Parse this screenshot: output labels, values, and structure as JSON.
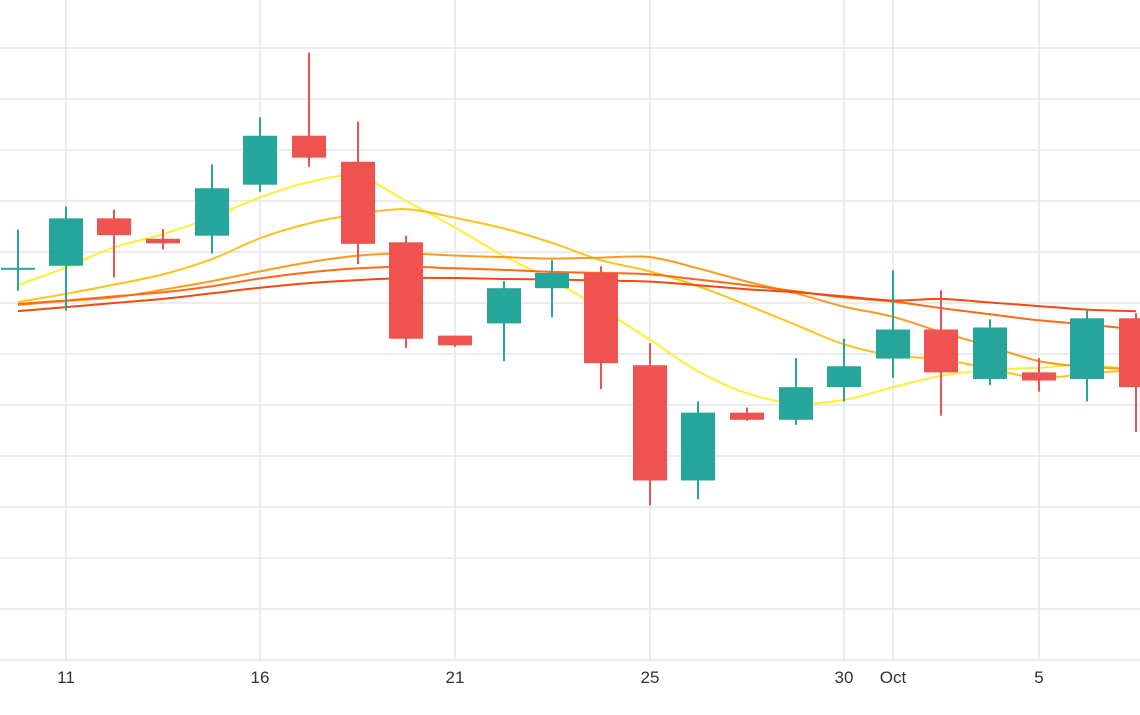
{
  "chart_data": {
    "type": "candlestick",
    "x_tick_labels": [
      "11",
      "16",
      "21",
      "25",
      "30",
      "Oct",
      "5"
    ],
    "grid": true,
    "colors": {
      "up": "#26a69a",
      "down": "#ef5350",
      "grid": "#e6e6e6",
      "ma_lines": [
        "#ffee33",
        "#ffc21a",
        "#ff9a1f",
        "#ff6a1a",
        "#f04a10"
      ]
    },
    "candles": [
      {
        "date": "Sep 10",
        "open": 76.6,
        "high": 84.4,
        "low": 72.4,
        "close": 76.9
      },
      {
        "date": "Sep 11",
        "open": 77.3,
        "high": 88.9,
        "low": 68.5,
        "close": 86.6
      },
      {
        "date": "Sep 12",
        "open": 86.6,
        "high": 88.3,
        "low": 75.0,
        "close": 83.3
      },
      {
        "date": "Sep 13",
        "open": 82.6,
        "high": 84.5,
        "low": 80.5,
        "close": 81.7
      },
      {
        "date": "Sep 15",
        "open": 83.2,
        "high": 97.2,
        "low": 79.7,
        "close": 92.5
      },
      {
        "date": "Sep 16",
        "open": 93.2,
        "high": 106.4,
        "low": 91.8,
        "close": 102.8
      },
      {
        "date": "Sep 17",
        "open": 102.8,
        "high": 119.1,
        "low": 96.7,
        "close": 98.5
      },
      {
        "date": "Sep 18",
        "open": 97.7,
        "high": 105.6,
        "low": 77.6,
        "close": 81.6
      },
      {
        "date": "Sep 20",
        "open": 81.9,
        "high": 83.2,
        "low": 61.2,
        "close": 63.0
      },
      {
        "date": "Sep 21",
        "open": 63.6,
        "high": 63.6,
        "low": 61.4,
        "close": 61.7
      },
      {
        "date": "Sep 22",
        "open": 66.0,
        "high": 74.3,
        "low": 58.6,
        "close": 72.9
      },
      {
        "date": "Sep 23",
        "open": 72.9,
        "high": 78.4,
        "low": 67.2,
        "close": 75.9
      },
      {
        "date": "Sep 24",
        "open": 75.9,
        "high": 77.2,
        "low": 53.1,
        "close": 58.2
      },
      {
        "date": "Sep 25",
        "open": 57.8,
        "high": 62.1,
        "low": 30.3,
        "close": 35.2
      },
      {
        "date": "Sep 26",
        "open": 35.2,
        "high": 50.7,
        "low": 31.5,
        "close": 48.5
      },
      {
        "date": "Sep 27",
        "open": 48.5,
        "high": 49.5,
        "low": 46.9,
        "close": 47.1
      },
      {
        "date": "Sep 29",
        "open": 47.1,
        "high": 59.2,
        "low": 46.1,
        "close": 53.5
      },
      {
        "date": "Sep 30",
        "open": 53.5,
        "high": 63.0,
        "low": 50.7,
        "close": 57.6
      },
      {
        "date": "Oct 1",
        "open": 59.1,
        "high": 76.4,
        "low": 55.3,
        "close": 64.8
      },
      {
        "date": "Oct 2",
        "open": 64.8,
        "high": 72.5,
        "low": 47.9,
        "close": 56.4
      },
      {
        "date": "Oct 4",
        "open": 55.1,
        "high": 66.8,
        "low": 53.9,
        "close": 65.2
      },
      {
        "date": "Oct 5",
        "open": 56.4,
        "high": 59.2,
        "low": 52.6,
        "close": 54.8
      },
      {
        "date": "Oct 6",
        "open": 55.1,
        "high": 68.5,
        "low": 50.7,
        "close": 67.0
      },
      {
        "date": "Oct 7",
        "open": 67.0,
        "high": 68.0,
        "low": 44.7,
        "close": 53.5
      }
    ],
    "moving_averages": [
      {
        "values": [
          73.5,
          77.0,
          80.9,
          83.5,
          86.8,
          90.7,
          93.7,
          94.8,
          90.0,
          84.8,
          79.2,
          74.5,
          68.9,
          62.8,
          56.6,
          52.3,
          50.3,
          51.0,
          53.5,
          55.7,
          56.9,
          57.3,
          57.9,
          56.8
        ]
      },
      {
        "values": [
          70.2,
          71.8,
          73.6,
          75.6,
          78.6,
          82.7,
          85.6,
          87.4,
          88.4,
          86.7,
          84.6,
          81.8,
          78.4,
          76.2,
          73.3,
          69.6,
          65.7,
          61.9,
          59.7,
          59.0,
          57.1,
          55.3,
          56.2,
          56.9
        ]
      },
      {
        "values": [
          69.6,
          70.4,
          71.1,
          72.6,
          74.3,
          76.2,
          78.0,
          79.3,
          79.7,
          79.3,
          79.0,
          78.7,
          78.9,
          79.0,
          76.8,
          74.2,
          71.9,
          69.3,
          67.3,
          64.3,
          61.5,
          58.6,
          57.5,
          57.0
        ]
      },
      {
        "values": [
          69.8,
          70.5,
          71.3,
          72.1,
          73.3,
          74.8,
          76.0,
          76.8,
          77.1,
          76.8,
          76.5,
          76.1,
          75.9,
          75.6,
          74.6,
          73.5,
          72.3,
          71.1,
          70.3,
          69.0,
          67.8,
          66.6,
          65.8,
          64.8
        ]
      },
      {
        "values": [
          68.4,
          69.2,
          70.0,
          70.8,
          71.9,
          73.0,
          73.9,
          74.5,
          74.9,
          74.9,
          74.7,
          74.6,
          74.4,
          74.2,
          73.5,
          72.7,
          72.1,
          71.3,
          70.5,
          70.8,
          70.1,
          69.4,
          68.7,
          68.4
        ]
      }
    ]
  }
}
